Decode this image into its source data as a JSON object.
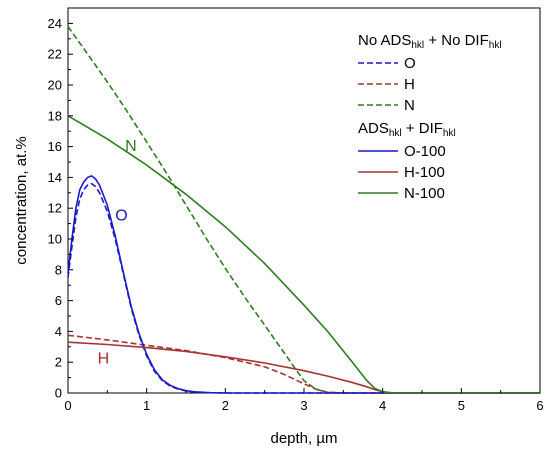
{
  "chart_data": {
    "type": "line",
    "xlabel": "depth, µm",
    "ylabel": "concentration, at.%",
    "xlim": [
      0,
      6
    ],
    "ylim": [
      0,
      25
    ],
    "x_ticks": [
      0,
      1,
      2,
      3,
      4,
      5,
      6
    ],
    "y_ticks": [
      0,
      2,
      4,
      6,
      8,
      10,
      12,
      14,
      16,
      18,
      20,
      22,
      24
    ],
    "grid": false,
    "legend_placement": "top-right",
    "legend_groups": [
      {
        "title_parts": [
          "No ADS",
          "hkl",
          " + No DIF",
          "hkl"
        ],
        "entries": [
          {
            "label": "O",
            "color": "#1a1acc",
            "dash": true
          },
          {
            "label": "H",
            "color": "#a83232",
            "dash": true
          },
          {
            "label": "N",
            "color": "#2e7d1e",
            "dash": true
          }
        ]
      },
      {
        "title_parts": [
          "ADS",
          "hkl",
          " + DIF",
          "hkl"
        ],
        "entries": [
          {
            "label": "O-100",
            "color": "#1a1acc",
            "dash": false
          },
          {
            "label": "H-100",
            "color": "#a83232",
            "dash": false
          },
          {
            "label": "N-100",
            "color": "#2e7d1e",
            "dash": false
          }
        ]
      }
    ],
    "annotations": [
      {
        "text": "N",
        "x": 0.8,
        "y": 15.7,
        "color": "#2e7d1e"
      },
      {
        "text": "O",
        "x": 0.68,
        "y": 11.2,
        "color": "#1a1acc"
      },
      {
        "text": "H",
        "x": 0.45,
        "y": 1.9,
        "color": "#a83232"
      }
    ],
    "series": [
      {
        "label": "O",
        "color": "#1a1acc",
        "dash": true,
        "x": [
          0,
          0.05,
          0.1,
          0.15,
          0.2,
          0.25,
          0.3,
          0.35,
          0.4,
          0.5,
          0.6,
          0.7,
          0.8,
          0.9,
          1.0,
          1.1,
          1.2,
          1.3,
          1.4,
          1.5,
          1.6,
          1.8,
          2.0,
          2.2,
          6.0
        ],
        "y": [
          7.5,
          9.5,
          11.4,
          12.6,
          13.2,
          13.5,
          13.6,
          13.4,
          13.0,
          11.8,
          10.0,
          7.8,
          5.6,
          3.8,
          2.4,
          1.4,
          0.8,
          0.45,
          0.25,
          0.13,
          0.07,
          0.02,
          0.0,
          0.0,
          0.0
        ]
      },
      {
        "label": "H",
        "color": "#a83232",
        "dash": true,
        "x": [
          0,
          0.5,
          1.0,
          1.5,
          2.0,
          2.5,
          2.75,
          3.0,
          3.15,
          3.3,
          3.5,
          6.0
        ],
        "y": [
          3.75,
          3.45,
          3.1,
          2.75,
          2.3,
          1.7,
          1.2,
          0.6,
          0.25,
          0.05,
          0.0,
          0.0
        ]
      },
      {
        "label": "N",
        "color": "#2e7d1e",
        "dash": true,
        "x": [
          0,
          0.25,
          0.5,
          0.75,
          1.0,
          1.25,
          1.5,
          1.75,
          2.0,
          2.25,
          2.5,
          2.75,
          2.9,
          3.0,
          3.15,
          3.3,
          3.5,
          6.0
        ],
        "y": [
          23.8,
          22.0,
          20.2,
          18.3,
          16.3,
          14.3,
          12.2,
          10.1,
          8.1,
          6.2,
          4.4,
          2.6,
          1.5,
          0.8,
          0.25,
          0.03,
          0.0,
          0.0
        ]
      },
      {
        "label": "O-100",
        "color": "#1a1acc",
        "dash": false,
        "x": [
          0,
          0.05,
          0.1,
          0.15,
          0.2,
          0.25,
          0.3,
          0.35,
          0.4,
          0.5,
          0.6,
          0.7,
          0.8,
          0.9,
          1.0,
          1.1,
          1.2,
          1.3,
          1.4,
          1.5,
          1.6,
          1.8,
          2.0,
          2.2,
          6.0
        ],
        "y": [
          7.8,
          10.0,
          12.0,
          13.2,
          13.7,
          14.0,
          14.1,
          13.9,
          13.5,
          12.2,
          10.2,
          7.9,
          5.7,
          3.9,
          2.5,
          1.5,
          0.85,
          0.5,
          0.28,
          0.15,
          0.08,
          0.02,
          0.0,
          0.0,
          0.0
        ]
      },
      {
        "label": "H-100",
        "color": "#a83232",
        "dash": false,
        "x": [
          0,
          0.5,
          1.0,
          1.5,
          2.0,
          2.5,
          3.0,
          3.3,
          3.6,
          3.8,
          3.9,
          4.0,
          4.1,
          4.3,
          6.0
        ],
        "y": [
          3.3,
          3.15,
          2.95,
          2.7,
          2.35,
          1.95,
          1.45,
          1.1,
          0.7,
          0.4,
          0.22,
          0.08,
          0.02,
          0.0,
          0.0
        ]
      },
      {
        "label": "N-100",
        "color": "#2e7d1e",
        "dash": false,
        "x": [
          0,
          0.5,
          1.0,
          1.5,
          2.0,
          2.5,
          3.0,
          3.3,
          3.6,
          3.8,
          3.9,
          4.0,
          4.1,
          4.2,
          6.0
        ],
        "y": [
          18.0,
          16.5,
          14.8,
          12.9,
          10.8,
          8.4,
          5.7,
          4.0,
          2.1,
          0.8,
          0.3,
          0.08,
          0.02,
          0.0,
          0.0
        ]
      }
    ]
  }
}
